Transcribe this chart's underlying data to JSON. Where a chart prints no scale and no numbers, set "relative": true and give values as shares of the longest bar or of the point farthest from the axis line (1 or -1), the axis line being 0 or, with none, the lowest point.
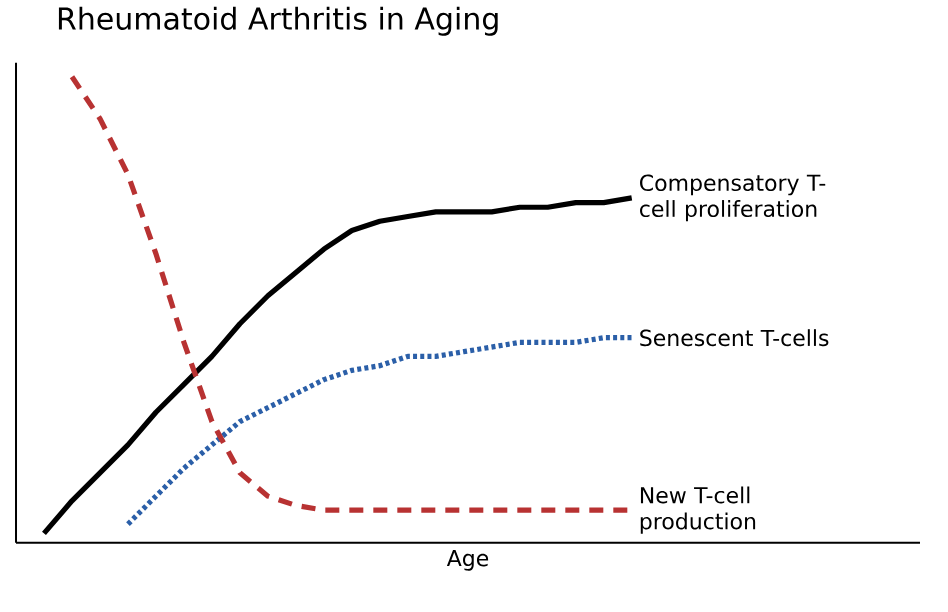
{
  "chart_data": {
    "type": "line",
    "title": "Rheumatoid Arthritis in Aging",
    "xlabel": "Age",
    "relative": true,
    "categories": [
      null,
      null,
      null,
      null,
      null,
      null,
      null,
      null,
      null,
      null,
      null,
      null,
      null,
      null,
      null,
      null,
      null,
      null,
      null,
      null,
      null,
      null
    ],
    "series": [
      {
        "name": "Compensatory T-cell proliferation",
        "color": "#000000",
        "line_style": "solid",
        "values": [
          0.02,
          0.09,
          0.15,
          0.21,
          0.28,
          0.34,
          0.4,
          0.47,
          0.53,
          0.58,
          0.63,
          0.67,
          0.69,
          0.7,
          0.71,
          0.71,
          0.71,
          0.72,
          0.72,
          0.73,
          0.73,
          0.74
        ]
      },
      {
        "name": "Senescent T-cells",
        "color": "#2b5fa8",
        "line_style": "dotted",
        "values": [
          null,
          null,
          null,
          0.04,
          0.1,
          0.16,
          0.21,
          0.26,
          0.29,
          0.32,
          0.35,
          0.37,
          0.38,
          0.4,
          0.4,
          0.41,
          0.42,
          0.43,
          0.43,
          0.43,
          0.44,
          0.44
        ]
      },
      {
        "name": "New T-cell production",
        "color": "#b83232",
        "line_style": "dashed",
        "values": [
          null,
          1.0,
          0.91,
          0.79,
          0.62,
          0.43,
          0.26,
          0.15,
          0.1,
          0.08,
          0.07,
          0.07,
          0.07,
          0.07,
          0.07,
          0.07,
          0.07,
          0.07,
          0.07,
          0.07,
          0.07,
          0.07
        ]
      }
    ]
  }
}
